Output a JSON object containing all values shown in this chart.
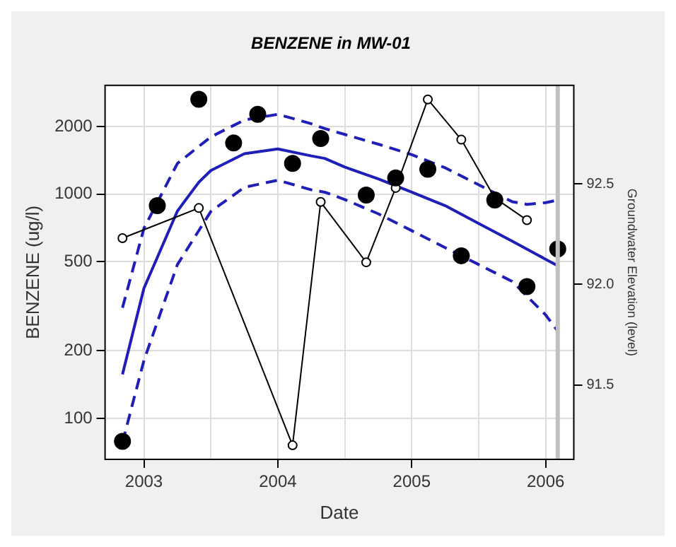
{
  "chart_data": {
    "type": "scatter",
    "title": "BENZENE in MW-01",
    "xlabel": "Date",
    "ylabel": "BENZENE (ug/l)",
    "y2label": "Groundwater Elevation (level)",
    "log": "y",
    "grid": true,
    "legend": false,
    "xlim": [
      2002.71,
      2006.21
    ],
    "xticks": [
      2003,
      {
        "value": 2003.5,
        "label": null
      },
      2004,
      {
        "value": 2004.5,
        "label": null
      },
      2005,
      {
        "value": 2005.5,
        "label": null
      },
      2006
    ],
    "ylim": [
      65.6,
      3055
    ],
    "yticks": [
      100,
      200,
      500,
      1000,
      2000
    ],
    "y2lim": [
      91.13,
      92.99
    ],
    "y2ticks": [
      {
        "value": 91.5,
        "label": "91.5"
      },
      {
        "value": 92.0,
        "label": "92.0"
      },
      {
        "value": 92.5,
        "label": "92.5"
      }
    ],
    "ref_lines": [
      {
        "axis": "x",
        "value": 2006.09,
        "label": null,
        "color": "#c0c0c0"
      }
    ],
    "series": [
      {
        "color": "#000000",
        "marker": "circle",
        "x": [
          2002.84,
          2003.1,
          2003.41,
          2003.67,
          2003.85,
          2004.11,
          2004.32,
          2004.66,
          2004.88,
          2005.12,
          2005.37,
          2005.62,
          2005.86,
          2006.09
        ],
        "values": [
          79,
          888,
          2650,
          1690,
          2270,
          1370,
          1770,
          990,
          1180,
          1290,
          531,
          942,
          387,
          569
        ]
      },
      {
        "type": "line",
        "axis": "y2",
        "color": "#000000",
        "marker": "circle",
        "line_style": "solid",
        "x": [
          2002.84,
          2003.41,
          2004.11,
          2004.32,
          2004.66,
          2004.88,
          2005.12,
          2005.37,
          2005.62,
          2005.86
        ],
        "values": [
          92.23,
          92.38,
          91.2,
          92.41,
          92.11,
          92.48,
          92.92,
          92.72,
          92.43,
          92.32
        ]
      },
      {
        "type": "line",
        "color": "#1f1fb8",
        "marker": "none",
        "line_style": "solid",
        "x": [
          2002.84,
          2003,
          2003.25,
          2003.41,
          2003.5,
          2003.75,
          2004,
          2004.25,
          2004.35,
          2004.5,
          2004.75,
          2005,
          2005.25,
          2005.5,
          2005.75,
          2006,
          2006.09
        ],
        "values": [
          157,
          380,
          840,
          1130,
          1275,
          1515,
          1590,
          1480,
          1443,
          1320,
          1170,
          1020,
          888,
          740,
          617,
          512,
          479
        ]
      },
      {
        "type": "line",
        "color": "#1f1fb8",
        "marker": "none",
        "line_style": "dashed",
        "x": [
          2002.84,
          2003,
          2003.25,
          2003.5,
          2003.75,
          2004,
          2004.25,
          2004.35,
          2004.5,
          2004.75,
          2005,
          2005.25,
          2005.5,
          2005.75,
          2005.86,
          2006,
          2006.09
        ],
        "values": [
          311,
          703,
          1370,
          1800,
          2140,
          2270,
          2060,
          1960,
          1845,
          1670,
          1500,
          1310,
          1100,
          925,
          900,
          916,
          940
        ]
      },
      {
        "type": "line",
        "color": "#1f1fb8",
        "marker": "none",
        "line_style": "dashed",
        "x": [
          2002.84,
          2003,
          2003.25,
          2003.5,
          2003.75,
          2004,
          2004.25,
          2004.35,
          2004.5,
          2004.75,
          2005,
          2005.25,
          2005.5,
          2005.75,
          2006,
          2006.09
        ],
        "values": [
          78,
          181,
          485,
          837,
          1072,
          1154,
          1045,
          1020,
          946,
          817,
          687,
          577,
          485,
          408,
          289,
          245
        ]
      }
    ]
  }
}
